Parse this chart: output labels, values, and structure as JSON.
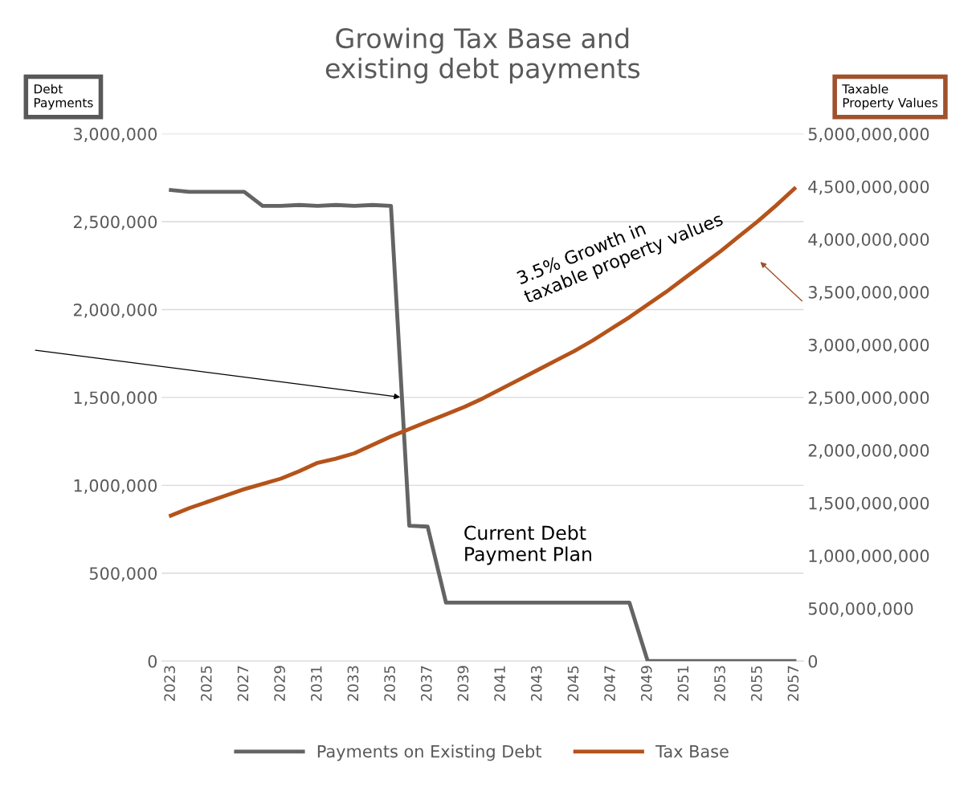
{
  "chart_data": {
    "type": "line",
    "title": "Growing Tax Base and\nexisting debt payments",
    "ylabel": "Debt\nPayments",
    "y2label": "Taxable\nProperty Values",
    "categories": [
      "2023",
      null,
      "2025",
      null,
      "2027",
      null,
      "2029",
      null,
      "2031",
      null,
      "2033",
      null,
      "2035",
      null,
      "2037",
      null,
      "2039",
      null,
      "2041",
      null,
      "2043",
      null,
      "2045",
      null,
      "2047",
      null,
      "2049",
      null,
      "2051",
      null,
      "2053",
      null,
      "2055",
      null,
      "2057"
    ],
    "series": [
      {
        "name": "Payments on Existing Debt",
        "color": "#646464",
        "values": [
          2680000,
          2670000,
          2670000,
          2670000,
          2670000,
          2590000,
          2590000,
          2595000,
          2590000,
          2595000,
          2590000,
          2595000,
          2590000,
          770000,
          765000,
          333000,
          333000,
          333000,
          333000,
          333000,
          333000,
          333000,
          333000,
          333000,
          333000,
          333000,
          0,
          0,
          0,
          0,
          0,
          0,
          0,
          0,
          0
        ]
      },
      {
        "name": "Tax Base",
        "color": "#b5531a",
        "axis": "y2",
        "values": [
          1380000000,
          1450000000,
          1510000000,
          1570000000,
          1630000000,
          1680000000,
          1730000000,
          1800000000,
          1880000000,
          1920000000,
          1970000000,
          2050000000,
          2130000000,
          2200000000,
          2270000000,
          2340000000,
          2410000000,
          2490000000,
          2580000000,
          2670000000,
          2760000000,
          2850000000,
          2940000000,
          3040000000,
          3150000000,
          3260000000,
          3380000000,
          3500000000,
          3630000000,
          3760000000,
          3890000000,
          4030000000,
          4170000000,
          4320000000,
          4480000000
        ]
      }
    ],
    "ylim": [
      0,
      3000000
    ],
    "yticks": [
      {
        "value": 0,
        "label": "0"
      },
      {
        "value": 500000,
        "label": "500,000"
      },
      {
        "value": 1000000,
        "label": "1,000,000"
      },
      {
        "value": 1500000,
        "label": "1,500,000"
      },
      {
        "value": 2000000,
        "label": "2,000,000"
      },
      {
        "value": 2500000,
        "label": "2,500,000"
      },
      {
        "value": 3000000,
        "label": "3,000,000"
      }
    ],
    "y2lim": [
      0,
      5000000000
    ],
    "y2ticks": [
      {
        "value": 0,
        "label": "0"
      },
      {
        "value": 500000000,
        "label": "500,000,000"
      },
      {
        "value": 1000000000,
        "label": "1,000,000,000"
      },
      {
        "value": 1500000000,
        "label": "1,500,000,000"
      },
      {
        "value": 2000000000,
        "label": "2,000,000,000"
      },
      {
        "value": 2500000000,
        "label": "2,500,000,000"
      },
      {
        "value": 3000000000,
        "label": "3,000,000,000"
      },
      {
        "value": 3500000000,
        "label": "3,500,000,000"
      },
      {
        "value": 4000000000,
        "label": "4,000,000,000"
      },
      {
        "value": 4500000000,
        "label": "4,500,000,000"
      },
      {
        "value": 5000000000,
        "label": "5,000,000,000"
      }
    ],
    "annotations": [
      "3.5% Growth in\ntaxable property values",
      "Current Debt\nPayment Plan"
    ],
    "grid": "y",
    "legend": "bottom",
    "marker": "none",
    "line_style": "solid"
  }
}
